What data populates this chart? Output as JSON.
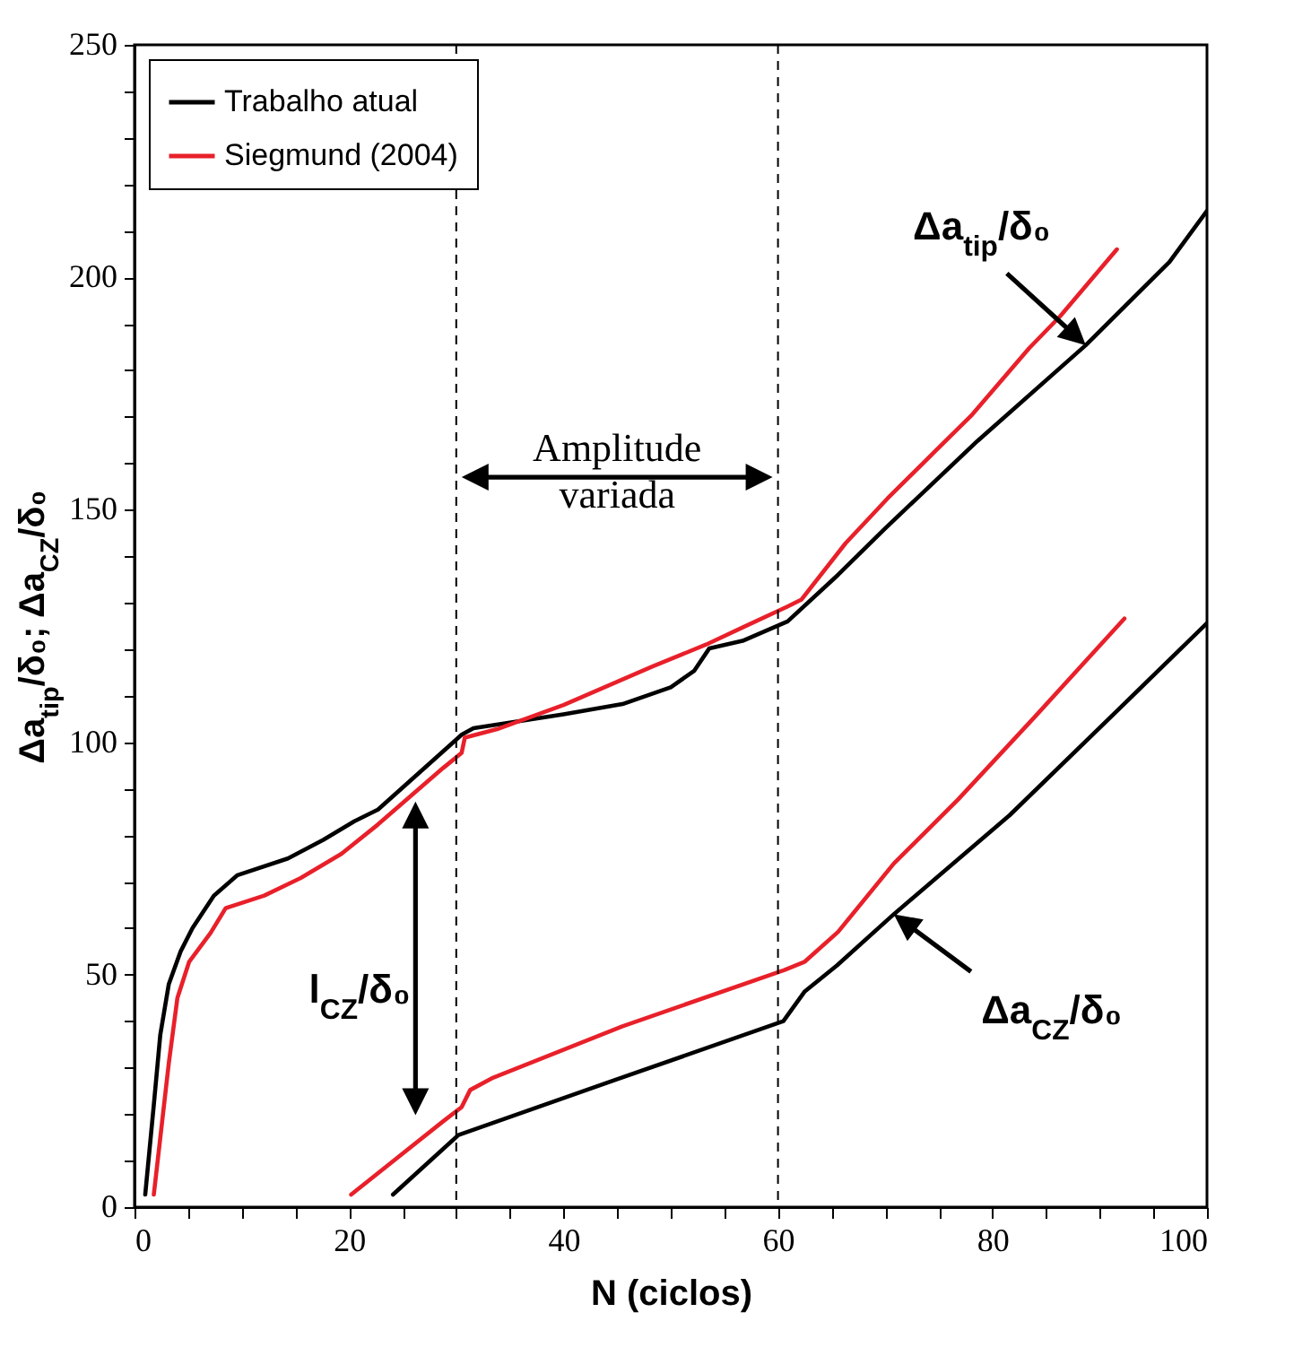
{
  "chart_data": {
    "type": "line",
    "xlabel": "N (ciclos)",
    "ylabel": "Δa$_{tip}$/δ₀; Δa$_{CZ}$/δ₀",
    "xlim": [
      0,
      100
    ],
    "ylim": [
      0,
      250
    ],
    "xticks": [
      0,
      {
        "value": 5,
        "label": null
      },
      {
        "value": 10,
        "label": null
      },
      {
        "value": 15,
        "label": null
      },
      20,
      {
        "value": 25,
        "label": null
      },
      {
        "value": 30,
        "label": null
      },
      {
        "value": 35,
        "label": null
      },
      40,
      {
        "value": 45,
        "label": null
      },
      {
        "value": 50,
        "label": null
      },
      {
        "value": 55,
        "label": null
      },
      60,
      {
        "value": 65,
        "label": null
      },
      {
        "value": 70,
        "label": null
      },
      {
        "value": 75,
        "label": null
      },
      80,
      {
        "value": 85,
        "label": null
      },
      {
        "value": 90,
        "label": null
      },
      {
        "value": 95,
        "label": null
      },
      100
    ],
    "yticks": [
      0,
      {
        "value": 10,
        "label": null
      },
      {
        "value": 20,
        "label": null
      },
      {
        "value": 30,
        "label": null
      },
      {
        "value": 40,
        "label": null
      },
      50,
      {
        "value": 60,
        "label": null
      },
      {
        "value": 70,
        "label": null
      },
      {
        "value": 80,
        "label": null
      },
      {
        "value": 90,
        "label": null
      },
      100,
      {
        "value": 110,
        "label": null
      },
      {
        "value": 120,
        "label": null
      },
      {
        "value": 130,
        "label": null
      },
      {
        "value": 140,
        "label": null
      },
      150,
      {
        "value": 160,
        "label": null
      },
      {
        "value": 170,
        "label": null
      },
      {
        "value": 180,
        "label": null
      },
      {
        "value": 190,
        "label": null
      },
      200,
      {
        "value": 210,
        "label": null
      },
      {
        "value": 220,
        "label": null
      },
      {
        "value": 230,
        "label": null
      },
      {
        "value": 240,
        "label": null
      },
      250
    ],
    "series": [
      {
        "name": "Trabalho atual",
        "color": "#000000",
        "x": [
          1.0,
          1.8,
          2.4,
          3.2,
          4.3,
          5.4,
          7.4,
          9.6,
          14.3,
          17.6,
          20.5,
          22.7,
          30.5,
          31.6,
          40,
          45.5,
          50,
          52.2,
          53.6,
          56.7,
          60.9,
          65.6,
          70,
          78.6,
          88.7,
          96.5,
          100
        ],
        "values": [
          2.7,
          22,
          37,
          48,
          55,
          60,
          67,
          71.4,
          75,
          79,
          83,
          85.5,
          101.6,
          103,
          106,
          108.2,
          111.8,
          115.4,
          120.2,
          121.8,
          126,
          136,
          146,
          164.8,
          185.4,
          203.3,
          214.3
        ]
      },
      {
        "name": "Siegmund (2004)",
        "color": "#e8202a",
        "x": [
          1.8,
          3.2,
          4,
          5.1,
          7.1,
          8.5,
          12.1,
          15.5,
          19.3,
          22.7,
          28.8,
          30.5,
          30.8,
          33.8,
          40,
          48.3,
          53.3,
          56.7,
          60.9,
          62.2,
          66.3,
          70.2,
          74.4,
          78,
          83.4,
          86.3,
          91.6
        ],
        "values": [
          2.7,
          31,
          45,
          52.8,
          59,
          64.3,
          67,
          70.8,
          76,
          82.3,
          94.5,
          97.7,
          101,
          102.8,
          108,
          116.3,
          121,
          124.7,
          129.2,
          130.7,
          142.8,
          152.4,
          162,
          170.2,
          184.7,
          191.6,
          206
        ]
      },
      {
        "color": "#000000",
        "x": [
          24.1,
          30.2,
          45,
          60.5,
          62.5,
          65.5,
          70.8,
          81.6,
          91.1,
          100
        ],
        "values": [
          2.7,
          15.5,
          27.5,
          40,
          46.4,
          52,
          63,
          84.3,
          105.6,
          125.6
        ]
      },
      {
        "color": "#e8202a",
        "x": [
          20.2,
          28.8,
          30.5,
          31.3,
          33.3,
          45.5,
          60.6,
          62.5,
          65.6,
          70.8,
          76.8,
          84,
          92.3
        ],
        "values": [
          2.7,
          18.5,
          21.5,
          25.2,
          27.7,
          38.9,
          51,
          52.8,
          59.2,
          73.9,
          87.7,
          105.6,
          126.6
        ]
      }
    ],
    "ref_lines": [
      {
        "axis": "x",
        "value": 30,
        "color": "#000000",
        "line_style": "dashed"
      },
      {
        "axis": "x",
        "value": 60,
        "color": "#000000",
        "line_style": "dashed"
      }
    ],
    "annotations": [
      "Amplitude variada",
      {
        "text": "Δa$_{tip}$/δ₀",
        "x": 88.7,
        "y": 185.4
      },
      "l$_{CZ}$/δ₀",
      {
        "text": "Δa$_{CZ}$/δ₀",
        "x": 70.8,
        "y": 63
      }
    ],
    "legend": "top left"
  }
}
